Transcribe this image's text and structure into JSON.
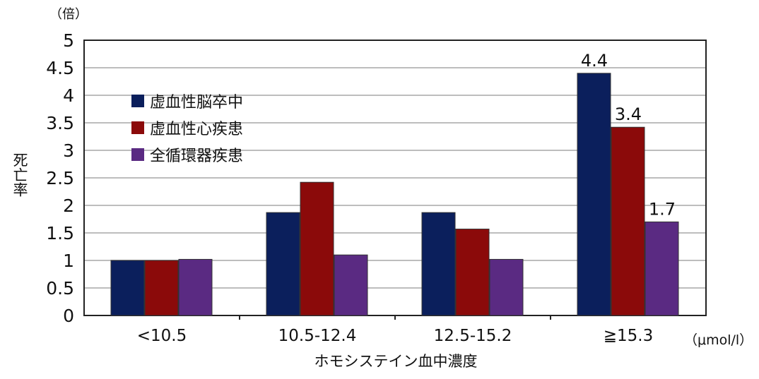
{
  "chart_data": {
    "type": "bar",
    "categories": [
      "<10.5",
      "10.5-12.4",
      "12.5-15.2",
      "≧15.3"
    ],
    "series": [
      {
        "name": "虚血性脳卒中",
        "color": "#0b1f5c",
        "values": [
          1.0,
          1.87,
          1.87,
          4.4
        ]
      },
      {
        "name": "虚血性心疾患",
        "color": "#8b0a0a",
        "values": [
          1.0,
          2.42,
          1.57,
          3.42
        ]
      },
      {
        "name": "全循環器疾患",
        "color": "#5a2a82",
        "values": [
          1.02,
          1.1,
          1.02,
          1.7
        ]
      }
    ],
    "data_labels": [
      {
        "series": 0,
        "category": 3,
        "text": "4.4"
      },
      {
        "series": 1,
        "category": 3,
        "text": "3.4"
      },
      {
        "series": 2,
        "category": 3,
        "text": "1.7"
      }
    ],
    "ylim": [
      0,
      5
    ],
    "yticks": [
      "0",
      "0.5",
      "1",
      "1.5",
      "2",
      "2.5",
      "3",
      "3.5",
      "4",
      "4.5",
      "5"
    ],
    "ylabel": "死亡率",
    "y_unit": "（倍）",
    "xlabel": "ホモシステイン血中濃度",
    "x_unit": "（μmol/l）",
    "grid": true,
    "legend_position": "top-left"
  }
}
